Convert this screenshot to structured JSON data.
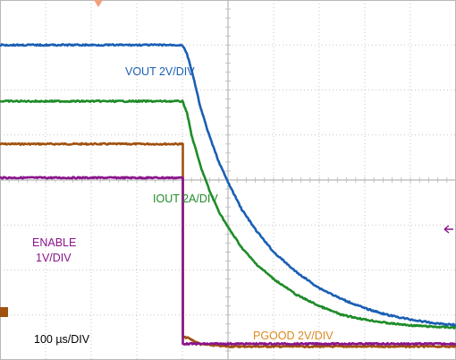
{
  "chart_data": {
    "type": "line",
    "title": "",
    "xlabel": "",
    "ylabel": "",
    "grid": true,
    "grid_divisions": {
      "x": 10,
      "y": 8
    },
    "x_unit": "µs",
    "xlim": [
      0,
      1000
    ],
    "ylim_divisions": [
      0,
      8
    ],
    "timebase_label": "100 µs/DIV",
    "trigger_time": 400,
    "series": [
      {
        "name": "VOUT 2V/DIV",
        "color": "#1a5fb4",
        "x": [
          0,
          400,
          410,
          420,
          440,
          460,
          480,
          500,
          530,
          560,
          600,
          650,
          700,
          750,
          800,
          850,
          900,
          950,
          1000
        ],
        "y": [
          7.0,
          7.0,
          6.8,
          6.45,
          5.6,
          4.95,
          4.4,
          3.95,
          3.35,
          2.9,
          2.4,
          1.95,
          1.6,
          1.35,
          1.15,
          1.0,
          0.9,
          0.82,
          0.78
        ]
      },
      {
        "name": "IOUT 2A/DIV",
        "color": "#1e8c28",
        "x": [
          0,
          400,
          410,
          420,
          440,
          460,
          480,
          500,
          530,
          560,
          600,
          650,
          700,
          750,
          800,
          850,
          900,
          950,
          1000
        ],
        "y": [
          5.75,
          5.75,
          5.5,
          5.0,
          4.3,
          3.75,
          3.3,
          2.95,
          2.5,
          2.15,
          1.8,
          1.45,
          1.2,
          1.0,
          0.9,
          0.82,
          0.77,
          0.74,
          0.72
        ]
      },
      {
        "name": "PGOOD 2V/DIV",
        "color": "#a0520f",
        "x": [
          0,
          400,
          401,
          410,
          440,
          500,
          600,
          700,
          1000
        ],
        "y": [
          4.8,
          4.8,
          0.5,
          0.5,
          0.35,
          0.3,
          0.3,
          0.3,
          0.3
        ]
      },
      {
        "name": "ENABLE 1V/DIV",
        "color": "#8a148c",
        "x": [
          0,
          400,
          401,
          1000
        ],
        "y": [
          4.05,
          4.05,
          0.36,
          0.36
        ]
      }
    ],
    "annotations": [
      {
        "text": "VOUT 2V/DIV",
        "color": "#1a5fb4"
      },
      {
        "text": "IOUT 2A/DIV",
        "color": "#1e8c28"
      },
      {
        "text": "ENABLE",
        "color": "#8a148c"
      },
      {
        "text": "1V/DIV",
        "color": "#8a148c"
      },
      {
        "text": "PGOOD 2V/DIV",
        "color": "#d98a20"
      },
      {
        "text": "100 µs/DIV",
        "color": "#000000"
      }
    ]
  },
  "colors": {
    "grid": "#b8b8b8",
    "trigger_marker": "#f2a07c",
    "ground_marker": "#a0520f",
    "level_marker": "#8a148c"
  }
}
